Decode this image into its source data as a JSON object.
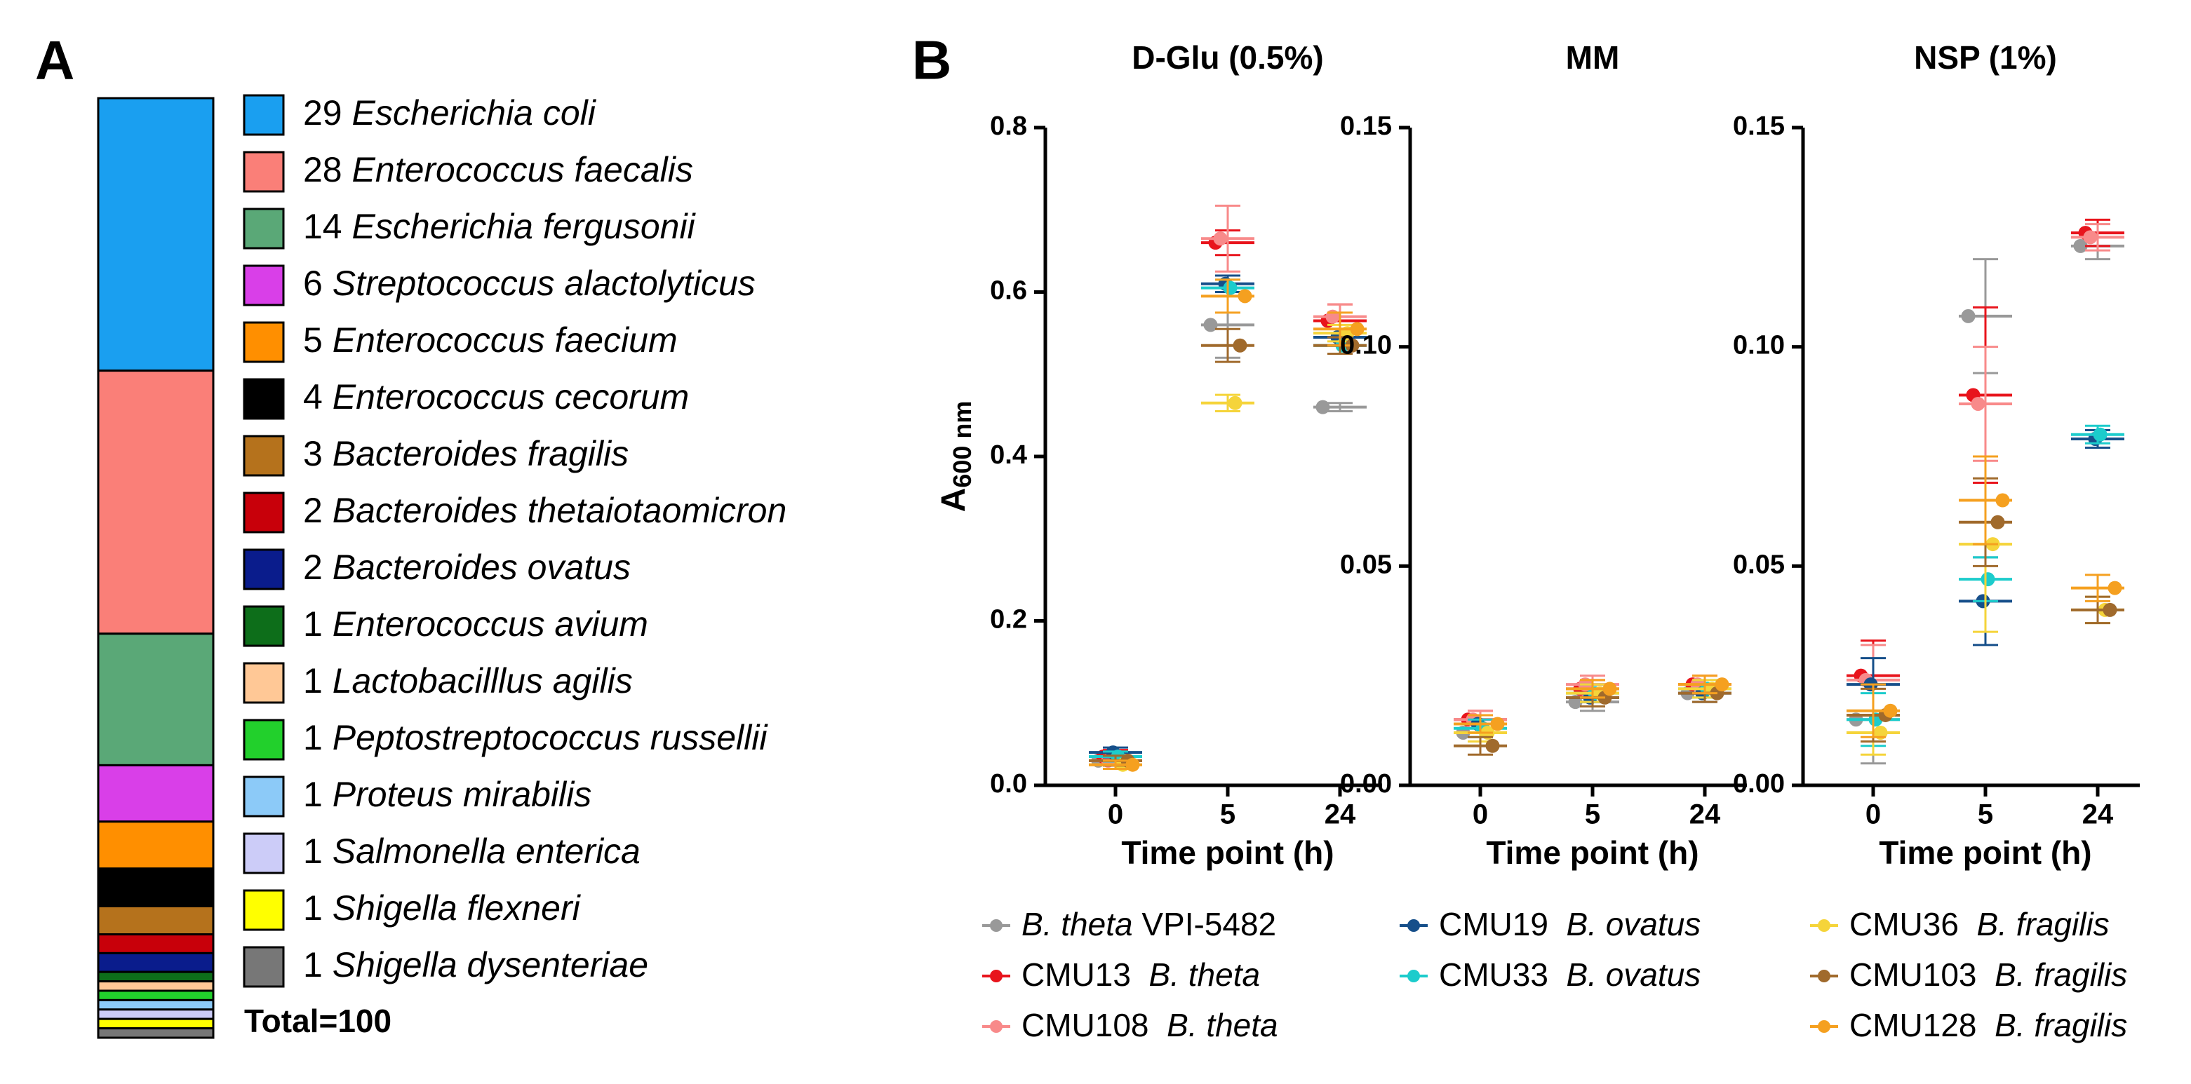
{
  "chart_data": [
    {
      "type": "stacked_bar",
      "label": "A",
      "categories": [
        "Escherichia coli",
        "Enterococcus faecalis",
        "Escherichia fergusonii",
        "Streptococcus alactolyticus",
        "Enterococcus faecium",
        "Enterococcus cecorum",
        "Bacteroides fragilis",
        "Bacteroides thetaiotaomicron",
        "Bacteroides ovatus",
        "Enterococcus avium",
        "Lactobacilllus agilis",
        "Peptostreptococcus russellii",
        "Proteus mirabilis",
        "Salmonella enterica",
        "Shigella flexneri",
        "Shigella dysenteriae"
      ],
      "values": [
        29,
        28,
        14,
        6,
        5,
        4,
        3,
        2,
        2,
        1,
        1,
        1,
        1,
        1,
        1,
        1
      ],
      "colors": [
        "#1a9ff0",
        "#fa7f78",
        "#5aa877",
        "#d93fe8",
        "#ff8f00",
        "#000000",
        "#b5721c",
        "#c8000a",
        "#0a1c8c",
        "#0d6e1a",
        "#ffc896",
        "#22d02c",
        "#8ccaf8",
        "#ccccf8",
        "#ffff00",
        "#777777"
      ],
      "total_label": "Total=100"
    },
    {
      "type": "scatter",
      "label": "B",
      "title": "D-Glu (0.5%)",
      "categories": [
        "0",
        "5",
        "24"
      ],
      "x_label": "Time point (h)",
      "y_label": "A",
      "y_label_subscript": "600 nm",
      "ylim": [
        0,
        0.8
      ],
      "yticks": [
        {
          "value": 0,
          "label": "0.0"
        },
        0.2,
        0.4,
        0.6,
        0.8
      ],
      "series": [
        {
          "name": "VPI-5482",
          "species": "B. theta",
          "species_first": true,
          "color": "#999999",
          "values": [
            0.03,
            0.56,
            0.46
          ],
          "errors": [
            0.006,
            0.04,
            0.005
          ]
        },
        {
          "name": "CMU13",
          "species": "B. theta",
          "color": "#e8141c",
          "values": [
            0.035,
            0.66,
            0.565
          ],
          "errors": [
            0.008,
            0.015,
            0.02
          ]
        },
        {
          "name": "CMU108",
          "species": "B. theta",
          "color": "#f88a8a",
          "values": [
            0.03,
            0.665,
            0.57
          ],
          "errors": [
            0.006,
            0.04,
            0.015
          ]
        },
        {
          "name": "CMU19",
          "species": "B. ovatus",
          "color": "#164f8a",
          "values": [
            0.04,
            0.61,
            0.545
          ],
          "errors": [
            0.006,
            0.01,
            0.01
          ]
        },
        {
          "name": "CMU33",
          "species": "B. ovatus",
          "color": "#1ccccc",
          "values": [
            0.035,
            0.605,
            0.535
          ],
          "errors": [
            0.006,
            0.01,
            0.01
          ]
        },
        {
          "name": "CMU36",
          "species": "B. fragilis",
          "color": "#f5d43a",
          "values": [
            0.025,
            0.465,
            0.55
          ],
          "errors": [
            0.005,
            0.01,
            0.01
          ]
        },
        {
          "name": "CMU103",
          "species": "B. fragilis",
          "color": "#a06a2c",
          "values": [
            0.03,
            0.535,
            0.535
          ],
          "errors": [
            0.006,
            0.02,
            0.01
          ]
        },
        {
          "name": "CMU128",
          "species": "B. fragilis",
          "color": "#f5a020",
          "values": [
            0.025,
            0.595,
            0.555
          ],
          "errors": [
            0.005,
            0.02,
            0.02
          ]
        }
      ]
    },
    {
      "type": "scatter",
      "title": "MM",
      "categories": [
        "0",
        "5",
        "24"
      ],
      "x_label": "Time point (h)",
      "ylim": [
        0,
        0.15
      ],
      "yticks": [
        {
          "value": 0,
          "label": "0.00"
        },
        0.05,
        {
          "value": 0.1,
          "label": "0.10"
        },
        0.15
      ],
      "series": [
        {
          "values": [
            0.012,
            0.019,
            0.021
          ],
          "errors": [
            0.002,
            0.002,
            0.002
          ]
        },
        {
          "values": [
            0.015,
            0.022,
            0.023
          ],
          "errors": [
            0.002,
            0.002,
            0.002
          ]
        },
        {
          "values": [
            0.015,
            0.023,
            0.023
          ],
          "errors": [
            0.002,
            0.002,
            0.002
          ]
        },
        {
          "values": [
            0.014,
            0.02,
            0.021
          ],
          "errors": [
            0.002,
            0.002,
            0.002
          ]
        },
        {
          "values": [
            0.013,
            0.021,
            0.022
          ],
          "errors": [
            0.002,
            0.002,
            0.002
          ]
        },
        {
          "values": [
            0.012,
            0.021,
            0.022
          ],
          "errors": [
            0.002,
            0.002,
            0.002
          ]
        },
        {
          "values": [
            0.009,
            0.02,
            0.021
          ],
          "errors": [
            0.002,
            0.002,
            0.002
          ]
        },
        {
          "values": [
            0.014,
            0.022,
            0.023
          ],
          "errors": [
            0.002,
            0.002,
            0.002
          ]
        }
      ]
    },
    {
      "type": "scatter",
      "title": "NSP (1%)",
      "categories": [
        "0",
        "5",
        "24"
      ],
      "x_label": "Time point (h)",
      "ylim": [
        0,
        0.15
      ],
      "yticks": [
        {
          "value": 0,
          "label": "0.00"
        },
        0.05,
        {
          "value": 0.1,
          "label": "0.10"
        },
        0.15
      ],
      "series": [
        {
          "values": [
            0.015,
            0.107,
            0.123
          ],
          "errors": [
            0.01,
            0.013,
            0.003
          ]
        },
        {
          "values": [
            0.025,
            0.089,
            0.126
          ],
          "errors": [
            0.008,
            0.02,
            0.003
          ]
        },
        {
          "values": [
            0.024,
            0.087,
            0.125
          ],
          "errors": [
            0.008,
            0.013,
            0.003
          ]
        },
        {
          "values": [
            0.023,
            0.042,
            0.079
          ],
          "errors": [
            0.006,
            0.01,
            0.002
          ]
        },
        {
          "values": [
            0.015,
            0.047,
            0.08
          ],
          "errors": [
            0.006,
            0.005,
            0.002
          ]
        },
        {
          "values": [
            0.012,
            0.055,
            0.04
          ],
          "errors": [
            0.005,
            0.02,
            0.003
          ]
        },
        {
          "values": [
            0.016,
            0.06,
            0.04
          ],
          "errors": [
            0.006,
            0.01,
            0.003
          ]
        },
        {
          "values": [
            0.017,
            0.065,
            0.045
          ],
          "errors": [
            0.006,
            0.01,
            0.003
          ]
        }
      ]
    }
  ]
}
